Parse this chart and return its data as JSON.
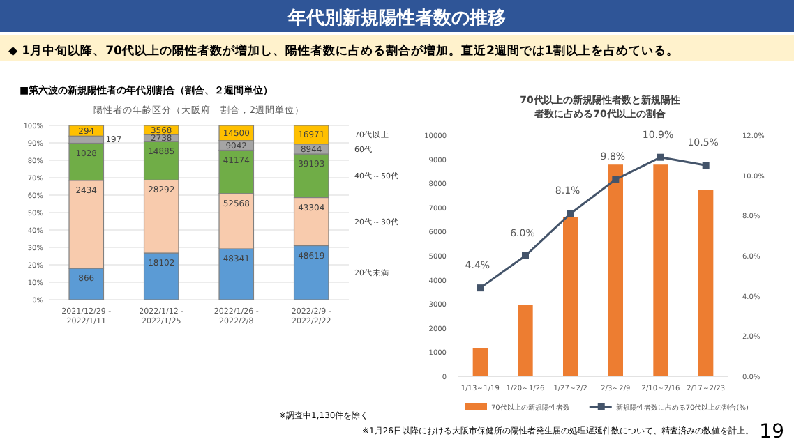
{
  "chart_data": [
    {
      "type": "other",
      "title": "年代別新規陽性者数の推移",
      "subtitle": "◆ 1月中旬以降、70代以上の陽性者数が増加し、陽性者数に占める割合が増加。直近2週間では1割以上を占めている。",
      "annotations": [
        "■第六波の新規陽性者の年代別割合（割合、２週間単位）",
        "※1月26日以降における大阪市保健所の陽性者発生届の処理遅延件数について、精査済みの数値を計上。",
        "19"
      ]
    },
    {
      "type": "bar",
      "stacked": true,
      "title": "陽性者の年齢区分（大阪府　割合，2週間単位）",
      "categories": [
        "2021/12/29 -\n2022/1/11",
        "2022/1/12 -\n2022/1/25",
        "2022/1/26 -\n2022/2/8",
        "2022/2/9 -\n2022/2/22"
      ],
      "series": [
        {
          "name": "20代未満",
          "color": "#5b9bd5",
          "values": [
            18.0,
            26.8,
            29.2,
            31.0
          ]
        },
        {
          "name": "20代～30代",
          "color": "#f8cbad",
          "values": [
            50.5,
            41.9,
            31.7,
            27.6
          ]
        },
        {
          "name": "40代～50代",
          "color": "#70ad47",
          "values": [
            21.3,
            22.0,
            24.9,
            25.0
          ]
        },
        {
          "name": "60代",
          "color": "#a5a5a5",
          "values": [
            4.1,
            4.0,
            5.5,
            5.7
          ]
        },
        {
          "name": "70代以上",
          "color": "#ffc000",
          "values": [
            6.1,
            5.3,
            8.7,
            10.7
          ]
        }
      ],
      "ylim": [
        0,
        100
      ],
      "yticks": [
        {
          "value": 0,
          "label": "0%"
        },
        {
          "value": 10,
          "label": "10%"
        },
        {
          "value": 20,
          "label": "20%"
        },
        {
          "value": 30,
          "label": "30%"
        },
        {
          "value": 40,
          "label": "40%"
        },
        {
          "value": 50,
          "label": "50%"
        },
        {
          "value": 60,
          "label": "60%"
        },
        {
          "value": 70,
          "label": "70%"
        },
        {
          "value": 80,
          "label": "80%"
        },
        {
          "value": 90,
          "label": "90%"
        },
        {
          "value": 100,
          "label": "100%"
        }
      ],
      "grid": "y",
      "annotations": [
        "※調査中1,130件を除く",
        {
          "text": "866",
          "x": "2021/12/29 -\n2022/1/11",
          "y": 18.0
        },
        {
          "text": "2434",
          "x": "2021/12/29 -\n2022/1/11",
          "y": 68.5
        },
        {
          "text": "1028",
          "x": "2021/12/29 -\n2022/1/11",
          "y": 89.8
        },
        {
          "text": "197",
          "x": "2021/12/29 -\n2022/1/11",
          "y": 93.9
        },
        {
          "text": "294",
          "x": "2021/12/29 -\n2022/1/11",
          "y": 100.0
        },
        {
          "text": "18102",
          "x": "2022/1/12 -\n2022/1/25",
          "y": 26.8
        },
        {
          "text": "28292",
          "x": "2022/1/12 -\n2022/1/25",
          "y": 68.7
        },
        {
          "text": "14885",
          "x": "2022/1/12 -\n2022/1/25",
          "y": 90.7
        },
        {
          "text": "2738",
          "x": "2022/1/12 -\n2022/1/25",
          "y": 94.7
        },
        {
          "text": "3568",
          "x": "2022/1/12 -\n2022/1/25",
          "y": 100.0
        },
        {
          "text": "48341",
          "x": "2022/1/26 -\n2022/2/8",
          "y": 29.2
        },
        {
          "text": "52568",
          "x": "2022/1/26 -\n2022/2/8",
          "y": 60.9
        },
        {
          "text": "41174",
          "x": "2022/1/26 -\n2022/2/8",
          "y": 85.8
        },
        {
          "text": "9042",
          "x": "2022/1/26 -\n2022/2/8",
          "y": 91.3
        },
        {
          "text": "14500",
          "x": "2022/1/26 -\n2022/2/8",
          "y": 100.0
        },
        {
          "text": "48619",
          "x": "2022/2/9 -\n2022/2/22",
          "y": 31.0
        },
        {
          "text": "43304",
          "x": "2022/2/9 -\n2022/2/22",
          "y": 58.6
        },
        {
          "text": "39193",
          "x": "2022/2/9 -\n2022/2/22",
          "y": 83.6
        },
        {
          "text": "8944",
          "x": "2022/2/9 -\n2022/2/22",
          "y": 89.3
        },
        {
          "text": "16971",
          "x": "2022/2/9 -\n2022/2/22",
          "y": 100.0
        }
      ]
    },
    {
      "type": "bar",
      "title": "70代以上の新規陽性者数と新規陽性者数に占める70代以上の割合",
      "categories": [
        "1/13～1/19",
        "1/20～1/26",
        "1/27～2/2",
        "2/3～2/9",
        "2/10～2/16",
        "2/17～2/23"
      ],
      "series": [
        {
          "name": "70代以上の新規陽性者数",
          "type": "bar",
          "color": "#ed7d31",
          "values": [
            1170,
            2950,
            6600,
            8780,
            8780,
            7730
          ]
        },
        {
          "name": "新規陽性者数に占める70代以上の割合(%)",
          "type": "line",
          "axis": "y2",
          "color": "#44546a",
          "marker": "square",
          "values": [
            4.4,
            6.0,
            8.1,
            9.8,
            10.9,
            10.5
          ],
          "value_labels": [
            "4.4%",
            "6.0%",
            "8.1%",
            "9.8%",
            "10.9%",
            "10.5%"
          ]
        }
      ],
      "ylim": [
        0,
        10000
      ],
      "yticks": [
        0,
        1000,
        2000,
        3000,
        4000,
        5000,
        6000,
        7000,
        8000,
        9000,
        10000
      ],
      "y2lim": [
        0,
        12
      ],
      "y2ticks": [
        {
          "value": 0,
          "label": "0.0%"
        },
        {
          "value": 2,
          "label": "2.0%"
        },
        {
          "value": 4,
          "label": "4.0%"
        },
        {
          "value": 6,
          "label": "6.0%"
        },
        {
          "value": 8,
          "label": "8.0%"
        },
        {
          "value": 10,
          "label": "10.0%"
        },
        {
          "value": 12,
          "label": "12.0%"
        }
      ],
      "legend": "bottom"
    }
  ]
}
